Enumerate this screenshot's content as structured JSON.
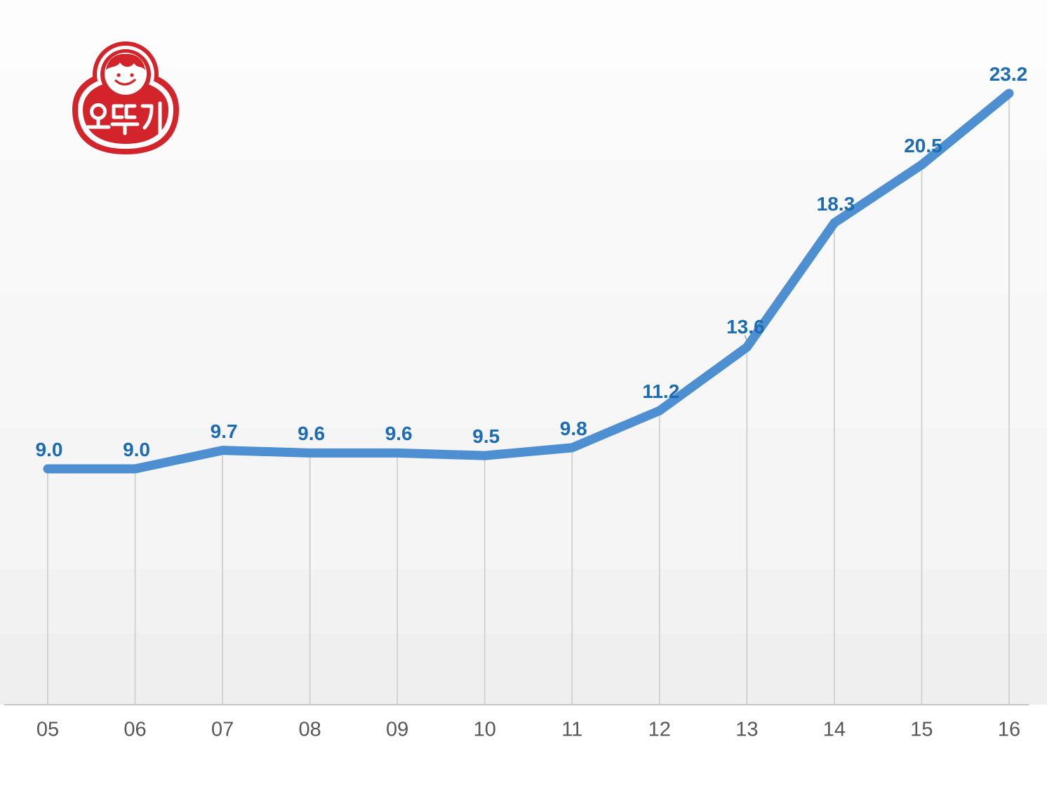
{
  "logo": {
    "brand_text": "오뚜기",
    "brand_color": "#D4242B"
  },
  "chart_data": {
    "type": "line",
    "categories": [
      "05",
      "06",
      "07",
      "08",
      "09",
      "10",
      "11",
      "12",
      "13",
      "14",
      "15",
      "16"
    ],
    "values": [
      9.0,
      9.0,
      9.7,
      9.6,
      9.6,
      9.5,
      9.8,
      11.2,
      13.6,
      18.3,
      20.5,
      23.2
    ],
    "value_labels_shown": true,
    "value_label_decimals": 1,
    "legend": "none",
    "grid": "off",
    "drop_lines": true,
    "line_color": "#4E8FD1",
    "value_label_color": "#1B6CB4",
    "axis_label_color": "#58585A",
    "axis_line_color": "#C6C6C6",
    "drop_line_color": "#CFCFCF",
    "leader_line_color": "#A6A6A6"
  }
}
